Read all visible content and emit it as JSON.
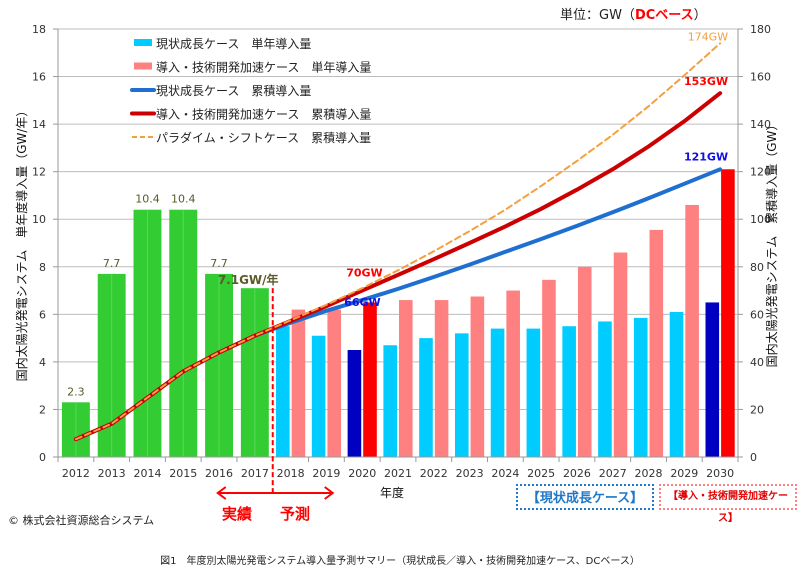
{
  "unit_label": "単位：GW（",
  "unit_dc": "DCベース",
  "unit_close": "）",
  "copyright": "© 株式会社資源総合システム",
  "caption": "図1　年度別太陽光発電システム導入量予測サマリー（現状成長／導入・技術開発加速ケース、DCベース）",
  "annotations": {
    "actual": "実績",
    "forecast": "予測",
    "current_case_box": "【現状成長ケース】",
    "accel_case_box": "【導入・技術開発加速ケース】",
    "y2017_rate": "7.1GW/年",
    "accel_2020": "70GW",
    "current_2020": "66GW",
    "paradigm_2030": "174GW",
    "accel_2030": "153GW",
    "current_2030": "121GW"
  },
  "colors": {
    "actual_bar": "#33cc33",
    "current_bar": "#00ccff",
    "current_bar_highlight": "#0000c0",
    "accel_bar": "#ff8080",
    "accel_bar_highlight": "#ff0000",
    "current_line": "#1f6fd0",
    "accel_line": "#cc0000",
    "paradigm_line": "#f4a040",
    "bar_label": "#5a5a2a"
  },
  "chart_data": {
    "type": "bar",
    "title": "",
    "xlabel": "年度",
    "ylabel": "国内太陽光発電システム　単年度導入量（GW/年）",
    "y2label": "国内太陽光発電システム　累積導入量（GW）",
    "ylim": [
      0,
      18
    ],
    "y2lim": [
      0,
      180
    ],
    "yticks": [
      0,
      2,
      4,
      6,
      8,
      10,
      12,
      14,
      16,
      18
    ],
    "y2ticks": [
      0,
      20,
      40,
      60,
      80,
      100,
      120,
      140,
      160,
      180
    ],
    "grid": true,
    "legend_position": "top-left",
    "categories": [
      "2012",
      "2013",
      "2014",
      "2015",
      "2016",
      "2017",
      "2018",
      "2019",
      "2020",
      "2021",
      "2022",
      "2023",
      "2024",
      "2025",
      "2026",
      "2027",
      "2028",
      "2029",
      "2030"
    ],
    "actual": {
      "name": "実績",
      "years": [
        "2012",
        "2013",
        "2014",
        "2015",
        "2016",
        "2017"
      ],
      "values": [
        2.3,
        7.7,
        10.4,
        10.4,
        7.7,
        7.1
      ],
      "labels": [
        "2.3",
        "7.7",
        "10.4",
        "10.4",
        "7.7",
        ""
      ]
    },
    "series": [
      {
        "name": "現状成長ケース　単年導入量",
        "kind": "bar",
        "axis": "left",
        "years": [
          "2018",
          "2019",
          "2020",
          "2021",
          "2022",
          "2023",
          "2024",
          "2025",
          "2026",
          "2027",
          "2028",
          "2029",
          "2030"
        ],
        "values": [
          5.5,
          5.1,
          4.5,
          4.7,
          5.0,
          5.2,
          5.4,
          5.4,
          5.5,
          5.7,
          5.85,
          6.1,
          6.5
        ]
      },
      {
        "name": "導入・技術開発加速ケース　単年導入量",
        "kind": "bar",
        "axis": "left",
        "years": [
          "2018",
          "2019",
          "2020",
          "2021",
          "2022",
          "2023",
          "2024",
          "2025",
          "2026",
          "2027",
          "2028",
          "2029",
          "2030"
        ],
        "values": [
          6.2,
          6.2,
          6.5,
          6.6,
          6.6,
          6.75,
          7.0,
          7.45,
          8.0,
          8.6,
          9.55,
          10.6,
          12.1
        ]
      },
      {
        "name": "現状成長ケース　累積導入量",
        "kind": "line",
        "axis": "right",
        "years": [
          "2012",
          "2013",
          "2014",
          "2015",
          "2016",
          "2017",
          "2018",
          "2019",
          "2020",
          "2021",
          "2022",
          "2023",
          "2024",
          "2025",
          "2026",
          "2027",
          "2028",
          "2029",
          "2030"
        ],
        "values": [
          7.5,
          14,
          25,
          36,
          44,
          51,
          56.5,
          61.5,
          66,
          70.7,
          75.7,
          80.9,
          86.3,
          91.7,
          97.2,
          102.9,
          108.8,
          114.9,
          121
        ]
      },
      {
        "name": "導入・技術開発加速ケース　累積導入量",
        "kind": "line",
        "axis": "right",
        "years": [
          "2012",
          "2013",
          "2014",
          "2015",
          "2016",
          "2017",
          "2018",
          "2019",
          "2020",
          "2021",
          "2022",
          "2023",
          "2024",
          "2025",
          "2026",
          "2027",
          "2028",
          "2029",
          "2030"
        ],
        "values": [
          7.5,
          14,
          25,
          36,
          44,
          51,
          57.2,
          63.4,
          70,
          76.6,
          83.2,
          90,
          97,
          104.4,
          112.4,
          121,
          130.6,
          141.2,
          153
        ]
      },
      {
        "name": "パラダイム・シフトケース　累積導入量",
        "kind": "dashed-line",
        "axis": "right",
        "years": [
          "2012",
          "2013",
          "2014",
          "2015",
          "2016",
          "2017",
          "2018",
          "2019",
          "2020",
          "2021",
          "2022",
          "2023",
          "2024",
          "2025",
          "2026",
          "2027",
          "2028",
          "2029",
          "2030"
        ],
        "values": [
          7.5,
          14,
          25,
          36,
          44,
          51,
          57.5,
          64,
          71,
          78.5,
          86.5,
          95,
          104,
          114,
          124.5,
          135.5,
          147.5,
          160.5,
          174
        ]
      }
    ],
    "highlight_years": [
      "2020",
      "2030"
    ]
  }
}
